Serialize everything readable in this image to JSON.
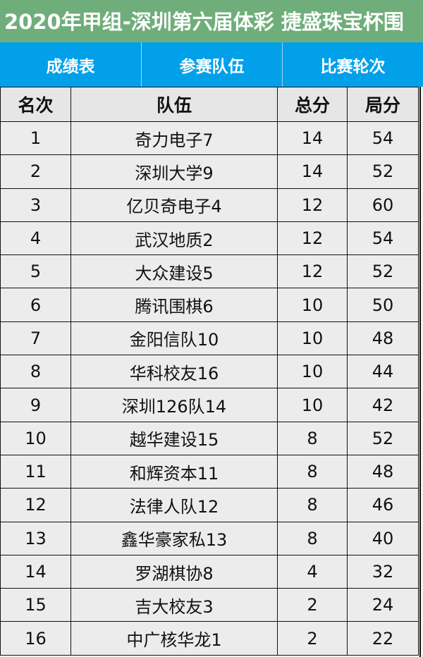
{
  "title": "2020年甲组-深圳第六届体彩 捷盛珠宝杯围",
  "tabs": [
    "成绩表",
    "参赛队伍",
    "比赛轮次"
  ],
  "columns": [
    "名次",
    "队伍",
    "总分",
    "局分"
  ],
  "rows": [
    [
      "1",
      "奇力电子7",
      "14",
      "54"
    ],
    [
      "2",
      "深圳大学9",
      "14",
      "52"
    ],
    [
      "3",
      "亿贝奇电子4",
      "12",
      "60"
    ],
    [
      "4",
      "武汉地质2",
      "12",
      "54"
    ],
    [
      "5",
      "大众建设5",
      "12",
      "52"
    ],
    [
      "6",
      "腾讯围棋6",
      "10",
      "50"
    ],
    [
      "7",
      "金阳信队10",
      "10",
      "48"
    ],
    [
      "8",
      "华科校友16",
      "10",
      "44"
    ],
    [
      "9",
      "深圳126队14",
      "10",
      "42"
    ],
    [
      "10",
      "越华建设15",
      "8",
      "52"
    ],
    [
      "11",
      "和辉资本11",
      "8",
      "48"
    ],
    [
      "12",
      "法律人队12",
      "8",
      "46"
    ],
    [
      "13",
      "鑫华豪家私13",
      "8",
      "40"
    ],
    [
      "14",
      "罗湖棋协8",
      "4",
      "32"
    ],
    [
      "15",
      "吉大校友3",
      "2",
      "24"
    ],
    [
      "16",
      "中广核华龙1",
      "2",
      "22"
    ]
  ]
}
